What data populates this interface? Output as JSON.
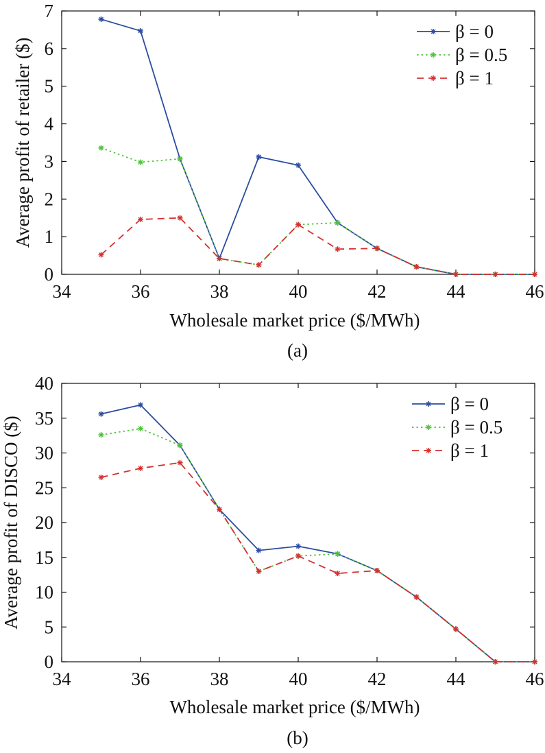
{
  "colors": {
    "beta0": "#2a4ca0",
    "beta05": "#4fc23b",
    "beta1": "#d63030",
    "axis": "#111111"
  },
  "chart_data": [
    {
      "type": "line",
      "caption": "(a)",
      "xlabel": "Wholesale market price ($/MWh)",
      "ylabel": "Average profit of retailer ($)",
      "xlim": [
        34,
        46
      ],
      "ylim": [
        0,
        7
      ],
      "xticks": [
        34,
        36,
        38,
        40,
        42,
        44,
        46
      ],
      "yticks": [
        0,
        1,
        2,
        3,
        4,
        5,
        6,
        7
      ],
      "grid": false,
      "legend_position": "top-right",
      "x": [
        35,
        36,
        37,
        38,
        39,
        40,
        41,
        42,
        43,
        44,
        45,
        46
      ],
      "series": [
        {
          "name": "β = 0",
          "style": "solid",
          "color_key": "beta0",
          "values": [
            6.78,
            6.47,
            3.07,
            0.42,
            3.12,
            2.9,
            1.37,
            0.69,
            0.2,
            0,
            0,
            0
          ]
        },
        {
          "name": "β = 0.5",
          "style": "dotted",
          "color_key": "beta05",
          "values": [
            3.36,
            2.98,
            3.07,
            0.42,
            0.25,
            1.32,
            1.37,
            0.69,
            0.2,
            0,
            0,
            0
          ]
        },
        {
          "name": "β = 1",
          "style": "dashed",
          "color_key": "beta1",
          "values": [
            0.52,
            1.46,
            1.5,
            0.42,
            0.25,
            1.32,
            0.67,
            0.69,
            0.2,
            0,
            0,
            0
          ]
        }
      ]
    },
    {
      "type": "line",
      "caption": "(b)",
      "xlabel": "Wholesale market price ($/MWh)",
      "ylabel": "Average profit of DISCO ($)",
      "xlim": [
        34,
        46
      ],
      "ylim": [
        0,
        40
      ],
      "xticks": [
        34,
        36,
        38,
        40,
        42,
        44,
        46
      ],
      "yticks": [
        0,
        5,
        10,
        15,
        20,
        25,
        30,
        35,
        40
      ],
      "grid": false,
      "legend_position": "top-right",
      "x": [
        35,
        36,
        37,
        38,
        39,
        40,
        41,
        42,
        43,
        44,
        45,
        46
      ],
      "series": [
        {
          "name": "β = 0",
          "style": "solid",
          "color_key": "beta0",
          "values": [
            35.6,
            36.9,
            31.1,
            21.9,
            16.0,
            16.6,
            15.5,
            13.1,
            9.3,
            4.7,
            0,
            0
          ]
        },
        {
          "name": "β = 0.5",
          "style": "dotted",
          "color_key": "beta05",
          "values": [
            32.6,
            33.5,
            31.1,
            21.9,
            13.0,
            15.2,
            15.5,
            13.1,
            9.3,
            4.7,
            0,
            0
          ]
        },
        {
          "name": "β = 1",
          "style": "dashed",
          "color_key": "beta1",
          "values": [
            26.5,
            27.8,
            28.6,
            21.9,
            13.0,
            15.2,
            12.7,
            13.1,
            9.3,
            4.7,
            0,
            0
          ]
        }
      ]
    }
  ]
}
